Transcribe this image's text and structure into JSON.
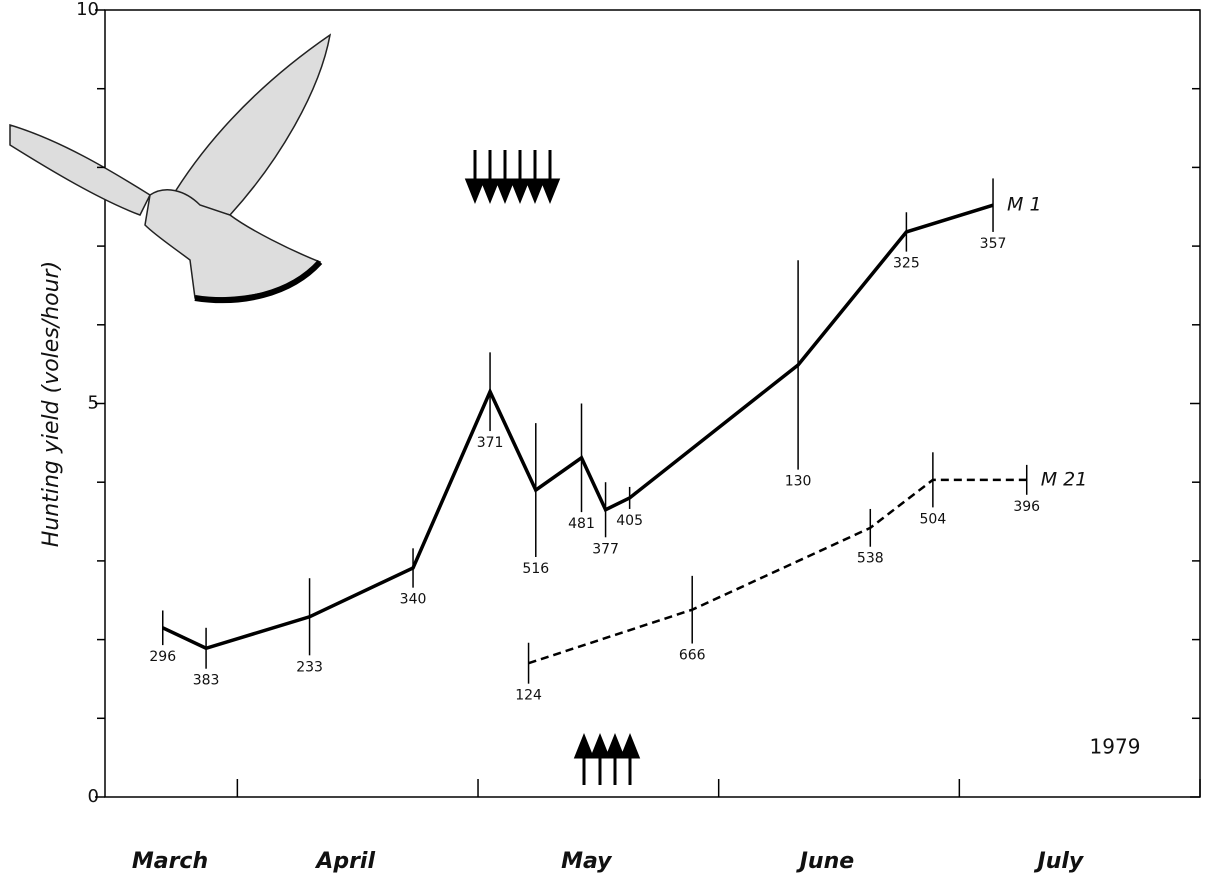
{
  "chart_data": {
    "type": "line",
    "y_label": "Hunting yield (voles/hour)",
    "annotation": "1979",
    "xlim": [
      0.45,
      5
    ],
    "xticks": [
      1,
      2,
      3,
      4,
      5
    ],
    "xtick_labels": [
      {
        "value": 0.72,
        "label": "March"
      },
      {
        "value": 1.45,
        "label": "April"
      },
      {
        "value": 2.45,
        "label": "May"
      },
      {
        "value": 3.45,
        "label": "June"
      },
      {
        "value": 4.42,
        "label": "July"
      }
    ],
    "ylim": [
      0,
      10
    ],
    "yticks": [
      0,
      5,
      10
    ],
    "yticks_minor": [
      1,
      2,
      3,
      4,
      6,
      7,
      8,
      9
    ],
    "series": [
      {
        "name": "M 1",
        "color": "#000000",
        "style": "solid",
        "x": [
          0.69,
          0.87,
          1.3,
          1.73,
          2.05,
          2.24,
          2.43,
          2.53,
          2.63,
          3.33,
          3.78,
          4.14
        ],
        "values": [
          2.15,
          1.89,
          2.29,
          2.91,
          5.15,
          3.9,
          4.31,
          3.65,
          3.8,
          5.49,
          7.18,
          7.52
        ],
        "errors": [
          0.22,
          0.26,
          0.49,
          0.25,
          0.5,
          0.85,
          0.69,
          0.35,
          0.14,
          1.33,
          0.25,
          0.34
        ],
        "n": [
          296,
          383,
          233,
          340,
          371,
          516,
          481,
          377,
          405,
          130,
          325,
          357
        ]
      },
      {
        "name": "M 21",
        "color": "#000000",
        "style": "dashed",
        "x": [
          2.21,
          2.89,
          3.63,
          3.89,
          4.28
        ],
        "values": [
          1.7,
          2.38,
          3.42,
          4.03,
          4.03
        ],
        "errors": [
          0.26,
          0.43,
          0.24,
          0.35,
          0.19
        ],
        "n": [
          124,
          666,
          538,
          504,
          396
        ]
      }
    ]
  }
}
